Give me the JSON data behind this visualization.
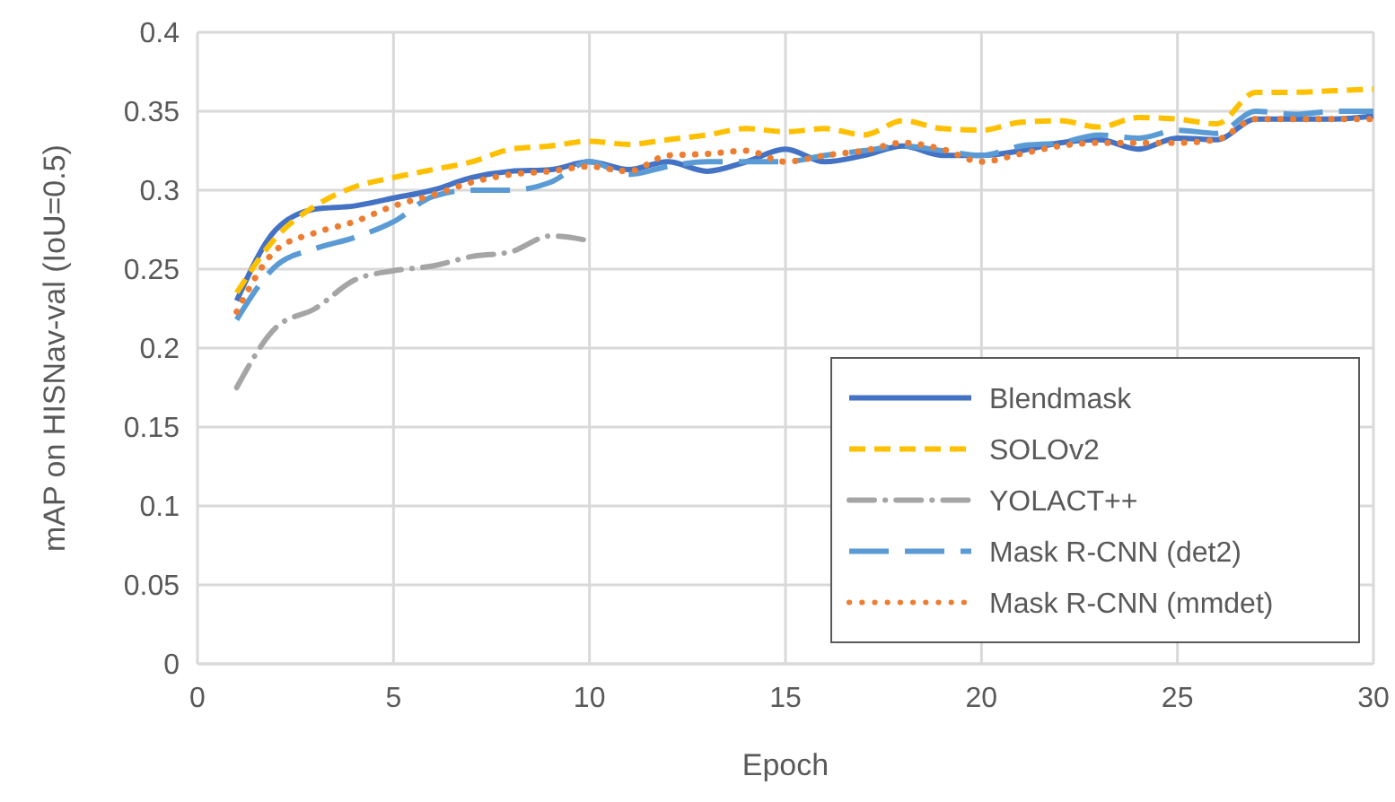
{
  "chart_data": {
    "type": "line",
    "xlabel": "Epoch",
    "ylabel": "mAP on HISNav-val (IoU=0.5)",
    "x": [
      1,
      2,
      3,
      4,
      5,
      6,
      7,
      8,
      9,
      10,
      11,
      12,
      13,
      14,
      15,
      16,
      17,
      18,
      19,
      20,
      21,
      22,
      23,
      24,
      25,
      26,
      27,
      28,
      29,
      30
    ],
    "xlim": [
      0,
      30
    ],
    "xticks": [
      0,
      5,
      10,
      15,
      20,
      25,
      30
    ],
    "ylim": [
      0,
      0.4
    ],
    "yticks": [
      0,
      0.05,
      0.1,
      0.15,
      0.2,
      0.25,
      0.3,
      0.35,
      0.4
    ],
    "grid": true,
    "legend": "bottom right",
    "marker": "none",
    "series": [
      {
        "name": "Blendmask",
        "color": "#4472c4",
        "line_style": "solid",
        "values": [
          0.23,
          0.275,
          0.288,
          0.29,
          0.295,
          0.3,
          0.308,
          0.312,
          0.313,
          0.318,
          0.313,
          0.318,
          0.312,
          0.318,
          0.326,
          0.318,
          0.322,
          0.328,
          0.322,
          0.322,
          0.325,
          0.33,
          0.332,
          0.326,
          0.333,
          0.332,
          0.345,
          0.345,
          0.345,
          0.347
        ]
      },
      {
        "name": "SOLOv2",
        "color": "#ffc000",
        "line_style": "dashed",
        "values": [
          0.235,
          0.27,
          0.29,
          0.302,
          0.308,
          0.313,
          0.318,
          0.326,
          0.328,
          0.331,
          0.329,
          0.332,
          0.335,
          0.339,
          0.337,
          0.339,
          0.335,
          0.344,
          0.339,
          0.338,
          0.343,
          0.344,
          0.34,
          0.346,
          0.345,
          0.342,
          0.362,
          0.362,
          0.363,
          0.364
        ]
      },
      {
        "name": "YOLACT++",
        "color": "#a5a5a5",
        "line_style": "dashdot",
        "values": [
          0.175,
          0.213,
          0.225,
          0.243,
          0.249,
          0.252,
          0.258,
          0.261,
          0.271,
          0.268,
          null,
          null,
          null,
          null,
          null,
          null,
          null,
          null,
          null,
          null,
          null,
          null,
          null,
          null,
          null,
          null,
          null,
          null,
          null,
          null
        ]
      },
      {
        "name": "Mask R-CNN (det2)",
        "color": "#5b9bd5",
        "line_style": "longdash",
        "values": [
          0.218,
          0.252,
          0.263,
          0.27,
          0.28,
          0.296,
          0.3,
          0.3,
          0.305,
          0.318,
          0.31,
          0.315,
          0.318,
          0.318,
          0.318,
          0.322,
          0.325,
          0.328,
          0.325,
          0.322,
          0.328,
          0.33,
          0.335,
          0.333,
          0.338,
          0.336,
          0.35,
          0.348,
          0.35,
          0.35
        ]
      },
      {
        "name": "Mask R-CNN (mmdet)",
        "color": "#ed7d31",
        "line_style": "dotted",
        "values": [
          0.223,
          0.262,
          0.273,
          0.28,
          0.29,
          0.297,
          0.305,
          0.31,
          0.312,
          0.315,
          0.312,
          0.322,
          0.323,
          0.325,
          0.318,
          0.322,
          0.325,
          0.33,
          0.326,
          0.318,
          0.323,
          0.328,
          0.33,
          0.33,
          0.33,
          0.332,
          0.345,
          0.345,
          0.345,
          0.345
        ]
      }
    ]
  }
}
